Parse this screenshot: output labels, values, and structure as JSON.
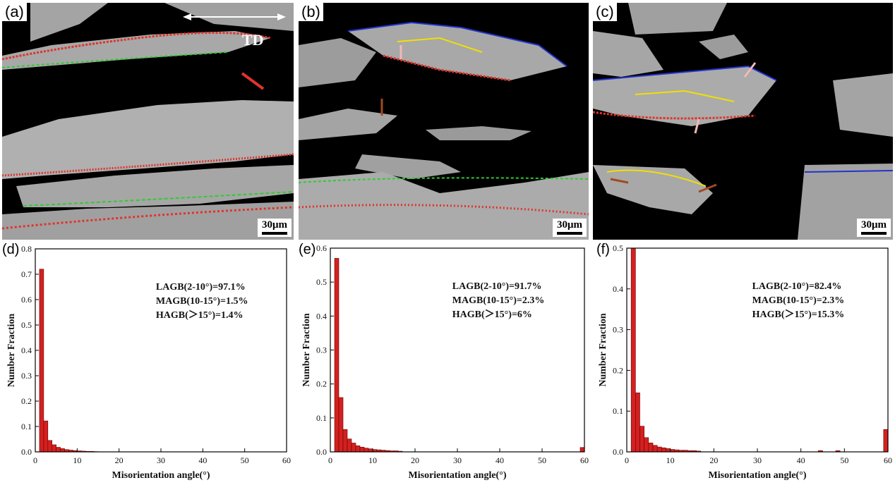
{
  "micrographs": [
    {
      "label": "(a)",
      "scale": "30μm",
      "direction_label": "TD"
    },
    {
      "label": "(b)",
      "scale": "30μm"
    },
    {
      "label": "(c)",
      "scale": "30μm"
    }
  ],
  "colors": {
    "bar_fill": "#d42020",
    "bar_stroke": "#6a0000",
    "grain_gray": "#a8a8a8",
    "lagb": "#e0342c",
    "magb": "#2ecc2e",
    "hagb_blue": "#2233cc",
    "hagb_yellow": "#f0e000",
    "arrow_pink": "#f2b8b8",
    "arrow_brown": "#a04a20"
  },
  "chart_data": [
    {
      "panel": "(d)",
      "type": "bar",
      "xlabel": "Misorientation angle(°)",
      "ylabel": "Number Fraction",
      "xlim": [
        0,
        60
      ],
      "ylim": [
        0,
        0.8
      ],
      "xticks": [
        0,
        10,
        20,
        30,
        40,
        50,
        60
      ],
      "yticks": [
        0.0,
        0.1,
        0.2,
        0.3,
        0.4,
        0.5,
        0.6,
        0.7,
        0.8
      ],
      "stats": [
        "LAGB(2-10°)=97.1%",
        "MAGB(10-15°)=1.5%",
        "HAGB(＞15°)=1.4%"
      ],
      "x": [
        1.5,
        2.5,
        3.5,
        4.5,
        5.5,
        6.5,
        7.5,
        8.5,
        9.5,
        10.5,
        11.5,
        12.5,
        13.5,
        14.5
      ],
      "values": [
        0.72,
        0.122,
        0.045,
        0.028,
        0.018,
        0.013,
        0.009,
        0.007,
        0.005,
        0.004,
        0.003,
        0.002,
        0.002,
        0.001
      ]
    },
    {
      "panel": "(e)",
      "type": "bar",
      "xlabel": "Misorientation angle(°)",
      "ylabel": "Number Fraction",
      "xlim": [
        0,
        60
      ],
      "ylim": [
        0,
        0.6
      ],
      "xticks": [
        0,
        10,
        20,
        30,
        40,
        50,
        60
      ],
      "yticks": [
        0.0,
        0.1,
        0.2,
        0.3,
        0.4,
        0.5,
        0.6
      ],
      "stats": [
        "LAGB(2-10°)=91.7%",
        "MAGB(10-15°)=2.3%",
        "HAGB(＞15°)=6%"
      ],
      "x": [
        1.5,
        2.5,
        3.5,
        4.5,
        5.5,
        6.5,
        7.5,
        8.5,
        9.5,
        10.5,
        11.5,
        12.5,
        13.5,
        14.5,
        15.5,
        16.5,
        59.5
      ],
      "values": [
        0.57,
        0.16,
        0.066,
        0.038,
        0.026,
        0.018,
        0.014,
        0.011,
        0.009,
        0.007,
        0.006,
        0.005,
        0.004,
        0.003,
        0.003,
        0.002,
        0.013
      ]
    },
    {
      "panel": "(f)",
      "type": "bar",
      "xlabel": "Misorientation angle(°)",
      "ylabel": "Number Fraction",
      "xlim": [
        0,
        60
      ],
      "ylim": [
        0,
        0.5
      ],
      "xticks": [
        0,
        10,
        20,
        30,
        40,
        50,
        60
      ],
      "yticks": [
        0.0,
        0.1,
        0.2,
        0.3,
        0.4,
        0.5
      ],
      "stats": [
        "LAGB(2-10°)=82.4%",
        "MAGB(10-15°)=2.3%",
        "HAGB(＞15°)=15.3%"
      ],
      "x": [
        1.5,
        2.5,
        3.5,
        4.5,
        5.5,
        6.5,
        7.5,
        8.5,
        9.5,
        10.5,
        11.5,
        12.5,
        13.5,
        14.5,
        15.5,
        16.5,
        44.5,
        48.5,
        59.5
      ],
      "values": [
        0.5,
        0.145,
        0.063,
        0.035,
        0.022,
        0.016,
        0.012,
        0.01,
        0.008,
        0.006,
        0.005,
        0.004,
        0.004,
        0.003,
        0.003,
        0.002,
        0.003,
        0.003,
        0.055
      ]
    }
  ]
}
